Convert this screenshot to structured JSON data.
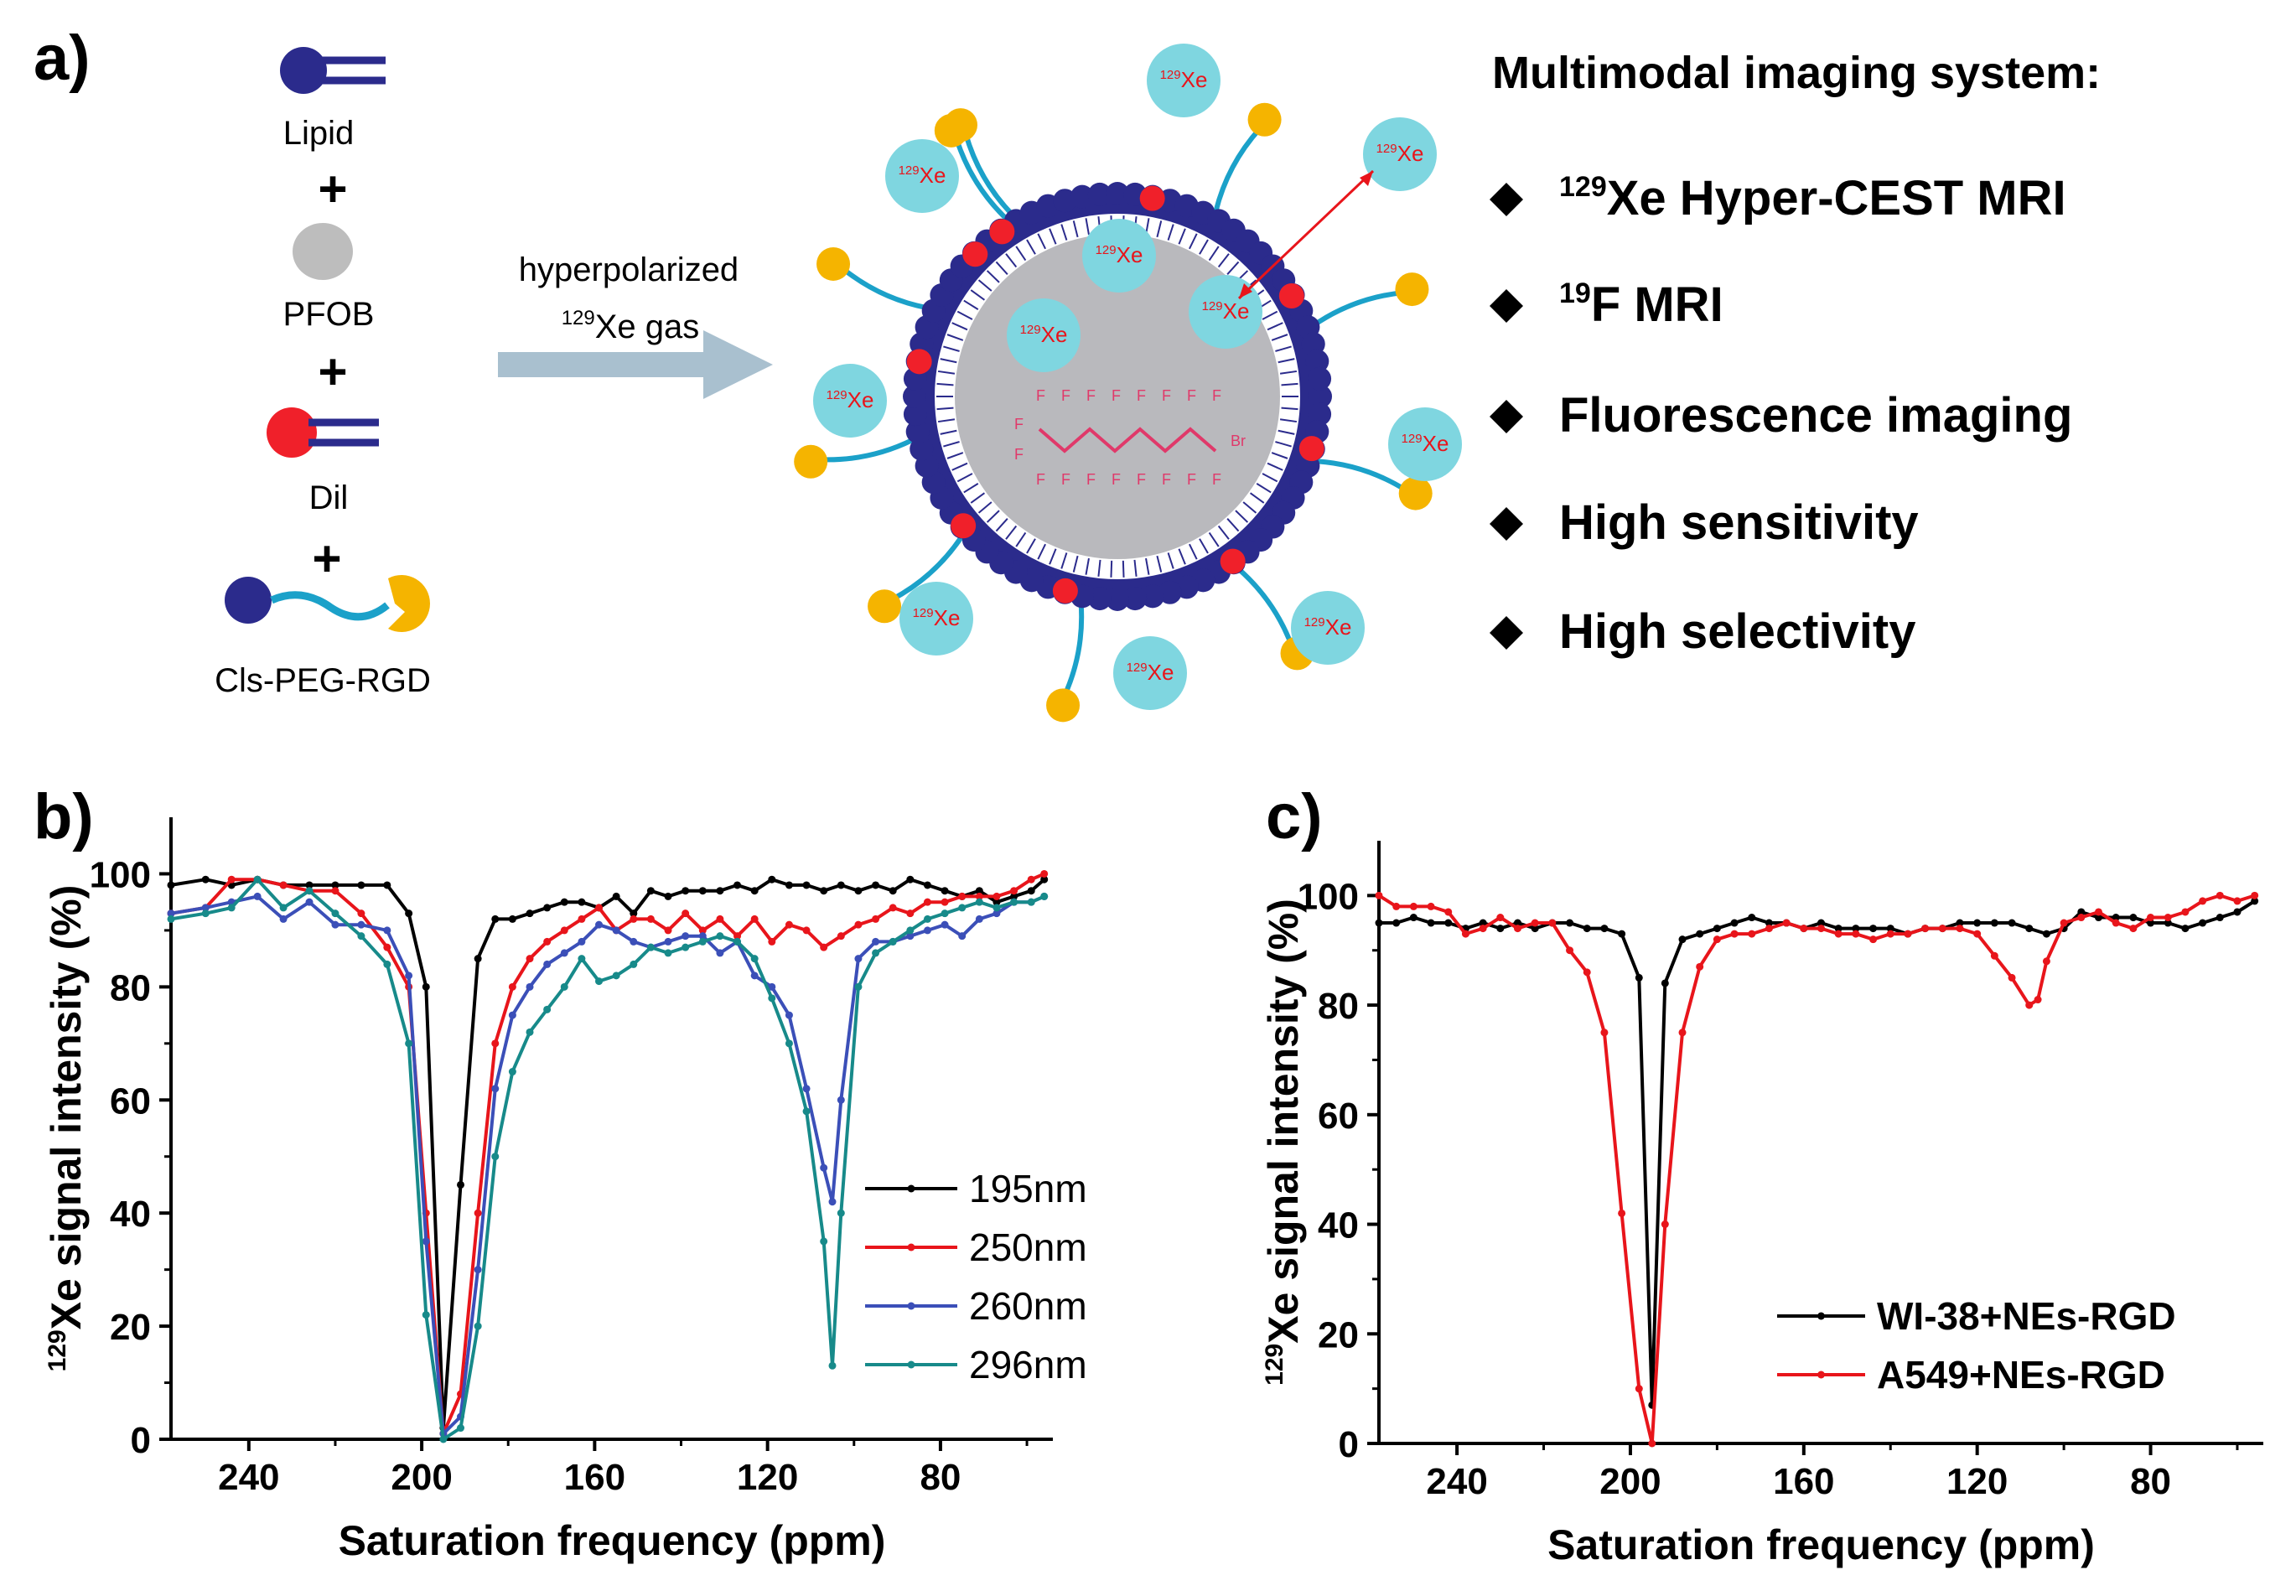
{
  "panel_a": {
    "label": "a)",
    "components": [
      {
        "name": "Lipid",
        "connector": "+"
      },
      {
        "name": "PFOB",
        "connector": "+"
      },
      {
        "name": "Dil",
        "connector": "+"
      },
      {
        "name": "Cls-PEG-RGD"
      }
    ],
    "arrow_line1": "hyperpolarized",
    "arrow_sup": "129",
    "arrow_line2": "Xe gas",
    "xe_sup": "129",
    "xe_text": "Xe",
    "fluorine": "F",
    "bromine": "Br",
    "system_title": "Multimodal imaging system:",
    "features": [
      {
        "sup": "129",
        "text": "Xe Hyper-CEST  MRI"
      },
      {
        "sup": "19",
        "text": "F MRI"
      },
      {
        "sup": "",
        "text": "Fluorescence imaging"
      },
      {
        "sup": "",
        "text": "High sensitivity"
      },
      {
        "sup": "",
        "text": "High selectivity"
      }
    ],
    "colors": {
      "lipid_head": "#2b2b8c",
      "tail": "#2b2b8c",
      "pfob": "#bdbdbd",
      "dil": "#f0202a",
      "peg": "#1ba1c9",
      "rgd": "#f5b400",
      "xe_bubble": "#7fd6e0",
      "core": "#b9b9bd",
      "arrow": "#a9c0cf",
      "fluorocarbon": "#e0396a"
    }
  },
  "chart_data": [
    {
      "panel_label": "b)",
      "type": "line",
      "xlabel": "Saturation frequency (ppm)",
      "ylabel_sup": "129",
      "ylabel": "Xe signal intensity (%)",
      "xlim": [
        258,
        54
      ],
      "ylim": [
        0,
        110
      ],
      "xticks": [
        240,
        200,
        160,
        120,
        80
      ],
      "yticks": [
        0,
        20,
        40,
        60,
        80,
        100
      ],
      "legend_position": "center-right",
      "series": [
        {
          "name": "195nm",
          "color": "#000000",
          "x": [
            258,
            250,
            244,
            238,
            232,
            226,
            220,
            214,
            208,
            203,
            199,
            195,
            191,
            187,
            183,
            179,
            175,
            171,
            167,
            163,
            159,
            155,
            151,
            147,
            143,
            139,
            135,
            131,
            127,
            123,
            119,
            115,
            111,
            107,
            103,
            99,
            95,
            91,
            87,
            83,
            79,
            75,
            71,
            67,
            63,
            59,
            56
          ],
          "y": [
            98,
            99,
            98,
            99,
            98,
            98,
            98,
            98,
            98,
            93,
            80,
            2,
            45,
            85,
            92,
            92,
            93,
            94,
            95,
            95,
            94,
            96,
            93,
            97,
            96,
            97,
            97,
            97,
            98,
            97,
            99,
            98,
            98,
            97,
            98,
            97,
            98,
            97,
            99,
            98,
            97,
            96,
            97,
            95,
            96,
            97,
            99
          ]
        },
        {
          "name": "250nm",
          "color": "#e8151b",
          "x": [
            258,
            250,
            244,
            238,
            232,
            226,
            220,
            214,
            208,
            203,
            199,
            195,
            191,
            187,
            183,
            179,
            175,
            171,
            167,
            163,
            159,
            155,
            151,
            147,
            143,
            139,
            135,
            131,
            127,
            123,
            119,
            115,
            111,
            107,
            103,
            99,
            95,
            91,
            87,
            83,
            79,
            75,
            71,
            67,
            63,
            59,
            56
          ],
          "y": [
            93,
            94,
            99,
            99,
            98,
            97,
            97,
            93,
            87,
            80,
            40,
            1,
            8,
            40,
            70,
            80,
            85,
            88,
            90,
            92,
            94,
            90,
            92,
            92,
            90,
            93,
            90,
            92,
            89,
            92,
            88,
            91,
            90,
            87,
            89,
            91,
            92,
            94,
            93,
            95,
            95,
            96,
            96,
            96,
            97,
            99,
            100
          ]
        },
        {
          "name": "260nm",
          "color": "#3b4fb8",
          "x": [
            258,
            250,
            244,
            238,
            232,
            226,
            220,
            214,
            208,
            203,
            199,
            195,
            191,
            187,
            183,
            179,
            175,
            171,
            167,
            163,
            159,
            155,
            151,
            147,
            143,
            139,
            135,
            131,
            127,
            123,
            119,
            115,
            111,
            107,
            105,
            103,
            99,
            95,
            91,
            87,
            83,
            79,
            75,
            71,
            67,
            63,
            59,
            56
          ],
          "y": [
            93,
            94,
            95,
            96,
            92,
            95,
            91,
            91,
            90,
            82,
            35,
            1,
            4,
            30,
            62,
            75,
            80,
            84,
            86,
            88,
            91,
            90,
            88,
            87,
            88,
            89,
            89,
            86,
            88,
            82,
            80,
            75,
            62,
            48,
            42,
            60,
            85,
            88,
            88,
            89,
            90,
            91,
            89,
            92,
            93,
            95,
            95,
            96
          ]
        },
        {
          "name": "296nm",
          "color": "#178a8a",
          "x": [
            258,
            250,
            244,
            238,
            232,
            226,
            220,
            214,
            208,
            203,
            199,
            195,
            191,
            187,
            183,
            179,
            175,
            171,
            167,
            163,
            159,
            155,
            151,
            147,
            143,
            139,
            135,
            131,
            127,
            123,
            119,
            115,
            111,
            107,
            105,
            103,
            99,
            95,
            91,
            87,
            83,
            79,
            75,
            71,
            67,
            63,
            59,
            56
          ],
          "y": [
            92,
            93,
            94,
            99,
            94,
            97,
            93,
            89,
            84,
            70,
            22,
            0,
            2,
            20,
            50,
            65,
            72,
            76,
            80,
            85,
            81,
            82,
            84,
            87,
            86,
            87,
            88,
            89,
            88,
            85,
            78,
            70,
            58,
            35,
            13,
            40,
            80,
            86,
            88,
            90,
            92,
            93,
            94,
            95,
            94,
            95,
            95,
            96
          ]
        }
      ]
    },
    {
      "panel_label": "c)",
      "type": "line",
      "xlabel": "Saturation frequency (ppm)",
      "ylabel_sup": "129",
      "ylabel": "Xe signal intensity (%)",
      "xlim": [
        258,
        54
      ],
      "ylim": [
        0,
        110
      ],
      "xticks": [
        240,
        200,
        160,
        120,
        80
      ],
      "yticks": [
        0,
        20,
        40,
        60,
        80,
        100
      ],
      "legend_position": "bottom-right",
      "series": [
        {
          "name": "WI-38+NEs-RGD",
          "color": "#000000",
          "x": [
            258,
            254,
            250,
            246,
            242,
            238,
            234,
            230,
            226,
            222,
            218,
            214,
            210,
            206,
            202,
            198,
            195,
            192,
            188,
            184,
            180,
            176,
            172,
            168,
            164,
            160,
            156,
            152,
            148,
            144,
            140,
            136,
            132,
            128,
            124,
            120,
            116,
            112,
            108,
            104,
            100,
            96,
            92,
            88,
            84,
            80,
            76,
            72,
            68,
            64,
            60,
            56
          ],
          "y": [
            95,
            95,
            96,
            95,
            95,
            94,
            95,
            94,
            95,
            94,
            95,
            95,
            94,
            94,
            93,
            85,
            7,
            84,
            92,
            93,
            94,
            95,
            96,
            95,
            95,
            94,
            95,
            94,
            94,
            94,
            94,
            93,
            94,
            94,
            95,
            95,
            95,
            95,
            94,
            93,
            94,
            97,
            96,
            96,
            96,
            95,
            95,
            94,
            95,
            96,
            97,
            99
          ]
        },
        {
          "name": "A549+NEs-RGD",
          "color": "#e8151b",
          "x": [
            258,
            254,
            250,
            246,
            242,
            238,
            234,
            230,
            226,
            222,
            218,
            214,
            210,
            206,
            202,
            198,
            195,
            192,
            188,
            184,
            180,
            176,
            172,
            168,
            164,
            160,
            156,
            152,
            148,
            144,
            140,
            136,
            132,
            128,
            124,
            120,
            116,
            112,
            108,
            106,
            104,
            100,
            96,
            92,
            88,
            84,
            80,
            76,
            72,
            68,
            64,
            60,
            56
          ],
          "y": [
            100,
            98,
            98,
            98,
            97,
            93,
            94,
            96,
            94,
            95,
            95,
            90,
            86,
            75,
            42,
            10,
            0,
            40,
            75,
            87,
            92,
            93,
            93,
            94,
            95,
            94,
            94,
            93,
            93,
            92,
            93,
            93,
            94,
            94,
            94,
            93,
            89,
            85,
            80,
            81,
            88,
            95,
            96,
            97,
            95,
            94,
            96,
            96,
            97,
            99,
            100,
            99,
            100
          ]
        }
      ]
    }
  ]
}
